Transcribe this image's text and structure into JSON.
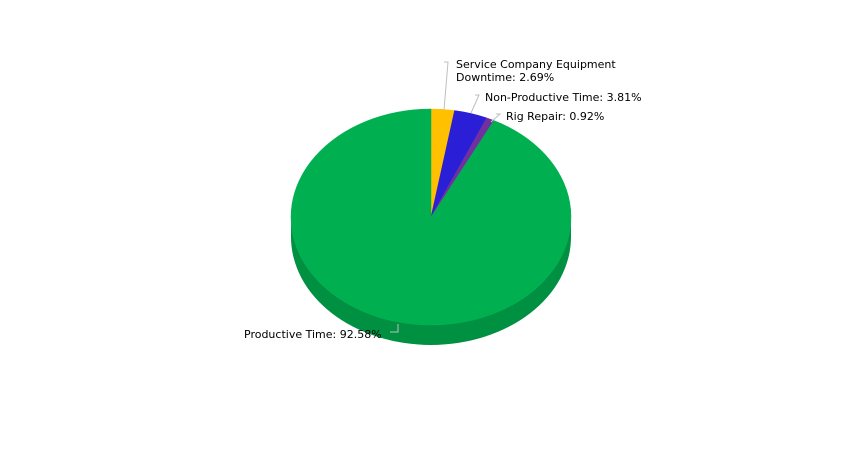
{
  "chart_data": {
    "type": "pie",
    "style": "3d",
    "title": "",
    "slices": [
      {
        "name": "Service Company Equipment Downtime",
        "value": 2.69,
        "label_lines": [
          "Service Company Equipment",
          "Downtime: 2.69%"
        ],
        "color": "#FFC000"
      },
      {
        "name": "Non-Productive Time",
        "value": 3.81,
        "label_lines": [
          "Non-Productive Time: 3.81%"
        ],
        "color": "#2A1FD6"
      },
      {
        "name": "Rig Repair",
        "value": 0.92,
        "label_lines": [
          "Rig Repair: 0.92%"
        ],
        "color": "#7030A0"
      },
      {
        "name": "Productive Time",
        "value": 92.58,
        "label_lines": [
          "Productive Time: 92.58%"
        ],
        "color": "#00B050"
      }
    ]
  }
}
